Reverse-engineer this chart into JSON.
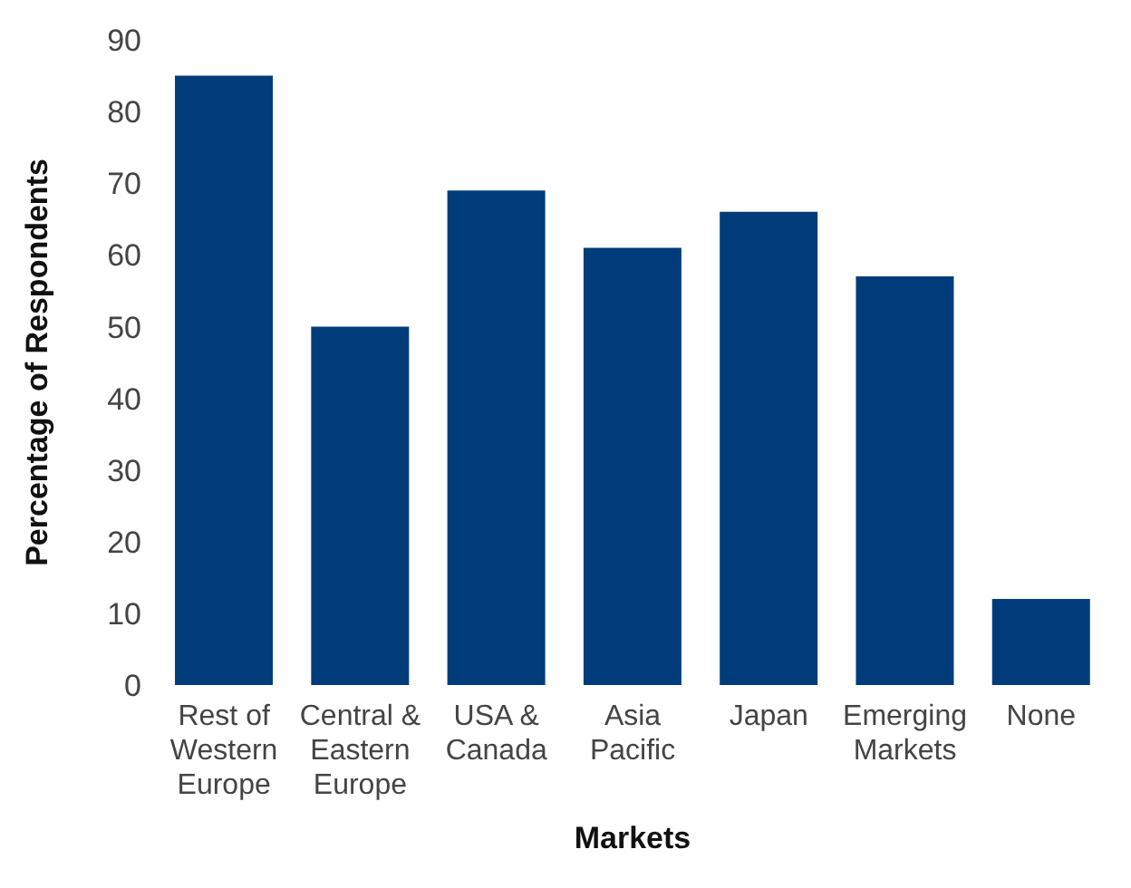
{
  "chart_data": {
    "type": "bar",
    "xlabel": "Markets",
    "ylabel": "Percentage of Respondents",
    "categories": [
      "Rest of Western Europe",
      "Central & Eastern Europe",
      "USA & Canada",
      "Asia Pacific",
      "Japan",
      "Emerging Markets",
      "None"
    ],
    "values": [
      85,
      50,
      69,
      61,
      66,
      57,
      12
    ],
    "color": "#003c7a",
    "ylim": [
      0,
      90
    ],
    "yticks": [
      0,
      10,
      20,
      30,
      40,
      50,
      60,
      70,
      80,
      90
    ],
    "grid": false
  }
}
